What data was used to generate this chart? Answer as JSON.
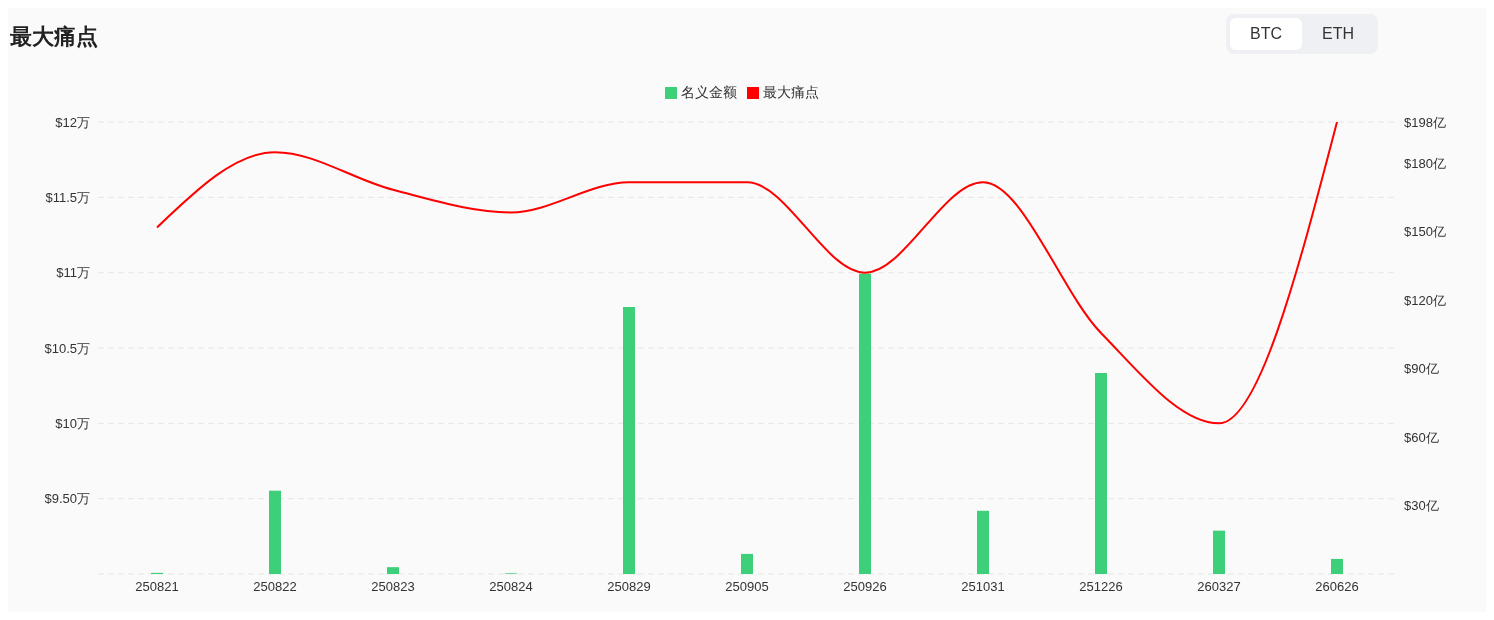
{
  "chart_data": {
    "type": "bar",
    "title": "最大痛点",
    "annotations": [
      "BTC",
      "ETH"
    ],
    "categories": [
      "250821",
      "250822",
      "250823",
      "250824",
      "250829",
      "250905",
      "250926",
      "251031",
      "251226",
      "260327",
      "260626"
    ],
    "series": [
      {
        "name": "名义金额",
        "axis": "y2",
        "color": "#3ecf7a",
        "values": [
          0.5,
          36.5,
          3,
          0.3,
          117,
          8.8,
          131.5,
          27.7,
          88,
          19,
          6.6
        ]
      },
      {
        "name": "最大痛点",
        "type": "line",
        "axis": "y",
        "color": "#ff0000",
        "values": [
          11.3,
          11.8,
          11.55,
          11.4,
          11.6,
          11.6,
          11.0,
          11.6,
          10.6,
          10.0,
          12.0
        ]
      }
    ],
    "ylim": [
      9,
      12
    ],
    "yticks": [
      {
        "value": 9.5,
        "label": "$9.50万"
      },
      {
        "value": 10,
        "label": "$10万"
      },
      {
        "value": 10.5,
        "label": "$10.5万"
      },
      {
        "value": 11,
        "label": "$11万"
      },
      {
        "value": 11.5,
        "label": "$11.5万"
      },
      {
        "value": 12,
        "label": "$12万"
      }
    ],
    "y2lim": [
      0,
      198
    ],
    "y2ticks": [
      {
        "value": 30,
        "label": "$30亿"
      },
      {
        "value": 60,
        "label": "$60亿"
      },
      {
        "value": 90,
        "label": "$90亿"
      },
      {
        "value": 120,
        "label": "$120亿"
      },
      {
        "value": 150,
        "label": "$150亿"
      },
      {
        "value": 180,
        "label": "$180亿"
      },
      {
        "value": 198,
        "label": "$198亿"
      }
    ],
    "grid": "y",
    "legend": "top",
    "marker": "none",
    "line_style": "solid"
  }
}
